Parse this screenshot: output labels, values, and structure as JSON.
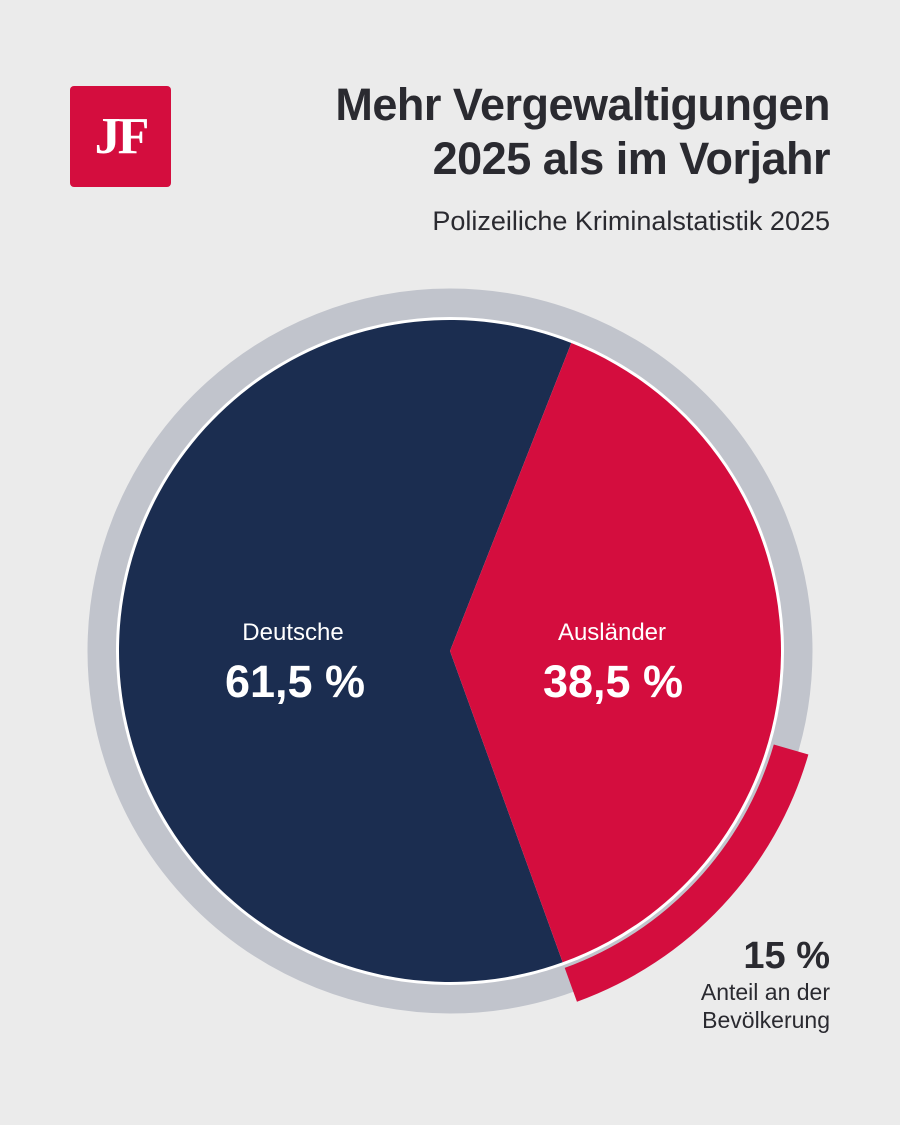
{
  "logo": {
    "text": "JF"
  },
  "header": {
    "title_line1": "Mehr Vergewaltigungen",
    "title_line2": "2025 als im Vorjahr",
    "subtitle": "Polizeiliche Kriminalstatistik 2025"
  },
  "colors": {
    "background": "#ebebeb",
    "deutsche": "#1b2d50",
    "auslaender": "#d40d3e",
    "ring": "#c1c4cc",
    "text": "#2a2a30"
  },
  "chart_data": {
    "type": "pie",
    "categories": [
      "Deutsche",
      "Ausländer"
    ],
    "values": [
      61.5,
      38.5
    ],
    "labels": [
      "61,5 %",
      "38,5 %"
    ],
    "annotation": {
      "value": 15,
      "label_value": "15 %",
      "label_line1": "Anteil an der",
      "label_line2": "Bevölkerung"
    }
  }
}
